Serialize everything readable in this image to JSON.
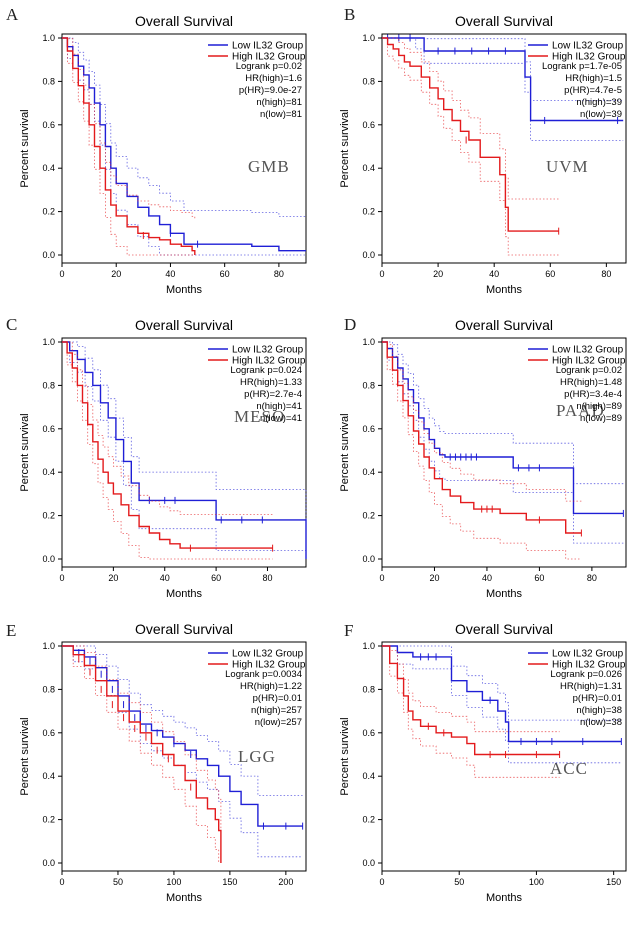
{
  "chart_data": [
    {
      "type": "line",
      "panel": "A",
      "title": "Overall Survival",
      "cancer": "GMB",
      "xlabel": "Months",
      "ylabel": "Percent survival",
      "xticks": [
        0,
        20,
        40,
        60,
        80
      ],
      "yticks": [
        "0.0",
        "0.2",
        "0.4",
        "0.6",
        "0.8",
        "1.0"
      ],
      "xlim": [
        0,
        90
      ],
      "ylim": [
        0,
        1
      ],
      "legend": [
        "Low IL32 Group",
        "High IL32 Group"
      ],
      "stats": [
        "Logrank p=0.02",
        "HR(high)=1.6",
        "p(HR)=9.0e-27",
        "n(high)=81",
        "n(low)=81"
      ],
      "series": [
        {
          "name": "Low IL32 Group",
          "color": "#1f1fd6",
          "x": [
            0,
            2,
            4,
            6,
            8,
            10,
            12,
            14,
            16,
            18,
            20,
            24,
            28,
            32,
            36,
            40,
            45,
            55,
            70,
            80,
            90
          ],
          "y": [
            1.0,
            0.96,
            0.92,
            0.87,
            0.83,
            0.77,
            0.7,
            0.6,
            0.5,
            0.4,
            0.33,
            0.27,
            0.22,
            0.18,
            0.14,
            0.1,
            0.05,
            0.05,
            0.04,
            0.02,
            0.02
          ],
          "censored": [
            [
              40,
              0.1
            ],
            [
              50,
              0.05
            ]
          ]
        },
        {
          "name": "High IL32 Group",
          "color": "#e31a1c",
          "x": [
            0,
            2,
            4,
            6,
            8,
            10,
            12,
            14,
            16,
            18,
            20,
            24,
            28,
            32,
            36,
            40,
            44,
            48,
            49
          ],
          "y": [
            1.0,
            0.94,
            0.86,
            0.78,
            0.7,
            0.6,
            0.5,
            0.4,
            0.3,
            0.23,
            0.18,
            0.13,
            0.1,
            0.08,
            0.07,
            0.05,
            0.04,
            0.02,
            0.0
          ],
          "censored": [
            [
              30,
              0.09
            ]
          ]
        }
      ]
    },
    {
      "type": "line",
      "panel": "B",
      "title": "Overall Survival",
      "cancer": "UVM",
      "xlabel": "Months",
      "ylabel": "Percent survival",
      "xticks": [
        0,
        20,
        40,
        60,
        80
      ],
      "yticks": [
        "0.0",
        "0.2",
        "0.4",
        "0.6",
        "0.8",
        "1.0"
      ],
      "xlim": [
        0,
        87
      ],
      "ylim": [
        0,
        1
      ],
      "legend": [
        "Low IL32 Group",
        "High IL32 Group"
      ],
      "stats": [
        "Logrank p=1.7e-05",
        "HR(high)=1.5",
        "p(HR)=4.7e-5",
        "n(high)=39",
        "n(low)=39"
      ],
      "series": [
        {
          "name": "Low IL32 Group",
          "color": "#1f1fd6",
          "x": [
            0,
            12,
            15,
            47,
            51,
            53,
            86
          ],
          "y": [
            1.0,
            1.0,
            0.94,
            0.94,
            0.82,
            0.62,
            0.62
          ],
          "censored": [
            [
              2,
              1.0
            ],
            [
              6,
              1.0
            ],
            [
              10,
              1.0
            ],
            [
              20,
              0.94
            ],
            [
              26,
              0.94
            ],
            [
              32,
              0.94
            ],
            [
              38,
              0.94
            ],
            [
              44,
              0.94
            ],
            [
              58,
              0.62
            ],
            [
              84,
              0.62
            ]
          ]
        },
        {
          "name": "High IL32 Group",
          "color": "#e31a1c",
          "x": [
            0,
            2,
            4,
            6,
            8,
            10,
            14,
            17,
            20,
            22,
            25,
            28,
            31,
            35,
            38,
            42,
            44,
            45,
            63
          ],
          "y": [
            1.0,
            0.97,
            0.95,
            0.92,
            0.89,
            0.87,
            0.82,
            0.77,
            0.72,
            0.67,
            0.62,
            0.57,
            0.53,
            0.45,
            0.45,
            0.37,
            0.22,
            0.11,
            0.11
          ],
          "censored": [
            [
              30,
              0.53
            ],
            [
              63,
              0.11
            ]
          ]
        }
      ]
    },
    {
      "type": "line",
      "panel": "C",
      "title": "Overall Survival",
      "cancer": "MESO",
      "xlabel": "Months",
      "ylabel": "Percent survival",
      "xticks": [
        0,
        20,
        40,
        60,
        80
      ],
      "yticks": [
        "0.0",
        "0.2",
        "0.4",
        "0.6",
        "0.8",
        "1.0"
      ],
      "xlim": [
        0,
        95
      ],
      "ylim": [
        0,
        1
      ],
      "legend": [
        "Low IL32 Group",
        "High IL32 Group"
      ],
      "stats": [
        "Logrank p=0.024",
        "HR(high)=1.33",
        "p(HR)=2.7e-4",
        "n(high)=41",
        "n(low)=41"
      ],
      "series": [
        {
          "name": "Low IL32 Group",
          "color": "#1f1fd6",
          "x": [
            0,
            3,
            6,
            9,
            12,
            15,
            18,
            21,
            24,
            27,
            30,
            57,
            60,
            94,
            95
          ],
          "y": [
            1.0,
            0.96,
            0.92,
            0.86,
            0.8,
            0.72,
            0.65,
            0.55,
            0.45,
            0.35,
            0.27,
            0.27,
            0.18,
            0.18,
            0.0
          ],
          "censored": [
            [
              34,
              0.27
            ],
            [
              40,
              0.27
            ],
            [
              44,
              0.27
            ],
            [
              62,
              0.18
            ],
            [
              70,
              0.18
            ],
            [
              78,
              0.18
            ]
          ]
        },
        {
          "name": "High IL32 Group",
          "color": "#e31a1c",
          "x": [
            0,
            2,
            4,
            6,
            8,
            10,
            12,
            14,
            16,
            18,
            20,
            23,
            26,
            30,
            34,
            38,
            42,
            46,
            82
          ],
          "y": [
            1.0,
            0.95,
            0.88,
            0.8,
            0.72,
            0.62,
            0.54,
            0.46,
            0.4,
            0.35,
            0.3,
            0.25,
            0.2,
            0.15,
            0.12,
            0.09,
            0.07,
            0.05,
            0.05
          ],
          "censored": [
            [
              50,
              0.05
            ],
            [
              82,
              0.05
            ]
          ]
        }
      ]
    },
    {
      "type": "line",
      "panel": "D",
      "title": "Overall Survival",
      "cancer": "PAAD",
      "xlabel": "Months",
      "ylabel": "Percent survival",
      "xticks": [
        0,
        20,
        40,
        60,
        80
      ],
      "yticks": [
        "0.0",
        "0.2",
        "0.4",
        "0.6",
        "0.8",
        "1.0"
      ],
      "xlim": [
        0,
        93
      ],
      "ylim": [
        0,
        1
      ],
      "legend": [
        "Low IL32 Group",
        "High IL32 Group"
      ],
      "stats": [
        "Logrank p=0.02",
        "HR(high)=1.48",
        "p(HR)=3.4e-4",
        "n(high)=89",
        "n(low)=89"
      ],
      "series": [
        {
          "name": "Low IL32 Group",
          "color": "#1f1fd6",
          "x": [
            0,
            2,
            4,
            6,
            8,
            10,
            12,
            14,
            16,
            18,
            20,
            22,
            24,
            37,
            50,
            72,
            73,
            92
          ],
          "y": [
            1.0,
            0.97,
            0.93,
            0.88,
            0.83,
            0.78,
            0.72,
            0.65,
            0.6,
            0.55,
            0.51,
            0.48,
            0.47,
            0.47,
            0.42,
            0.42,
            0.21,
            0.21
          ],
          "censored": [
            [
              26,
              0.47
            ],
            [
              28,
              0.47
            ],
            [
              30,
              0.47
            ],
            [
              32,
              0.47
            ],
            [
              34,
              0.47
            ],
            [
              36,
              0.47
            ],
            [
              52,
              0.42
            ],
            [
              56,
              0.42
            ],
            [
              60,
              0.42
            ],
            [
              92,
              0.21
            ]
          ]
        },
        {
          "name": "High IL32 Group",
          "color": "#e31a1c",
          "x": [
            0,
            2,
            4,
            6,
            8,
            10,
            12,
            14,
            16,
            18,
            20,
            23,
            26,
            30,
            35,
            45,
            55,
            70,
            76
          ],
          "y": [
            1.0,
            0.93,
            0.87,
            0.8,
            0.73,
            0.66,
            0.59,
            0.53,
            0.47,
            0.42,
            0.37,
            0.32,
            0.29,
            0.26,
            0.23,
            0.21,
            0.18,
            0.12,
            0.12
          ],
          "censored": [
            [
              38,
              0.23
            ],
            [
              40,
              0.23
            ],
            [
              42,
              0.23
            ],
            [
              60,
              0.18
            ],
            [
              76,
              0.12
            ]
          ]
        }
      ]
    },
    {
      "type": "line",
      "panel": "E",
      "title": "Overall Survival",
      "cancer": "LGG",
      "xlabel": "Months",
      "ylabel": "Percent survival",
      "xticks": [
        0,
        50,
        100,
        150,
        200
      ],
      "yticks": [
        "0.0",
        "0.2",
        "0.4",
        "0.6",
        "0.8",
        "1.0"
      ],
      "xlim": [
        0,
        218
      ],
      "ylim": [
        0,
        1
      ],
      "legend": [
        "Low IL32 Group",
        "High IL32 Group"
      ],
      "stats": [
        "Logrank p=0.0034",
        "HR(high)=1.22",
        "p(HR)=0.01",
        "n(high)=257",
        "n(low)=257"
      ],
      "series": [
        {
          "name": "Low IL32 Group",
          "color": "#1f1fd6",
          "x": [
            0,
            10,
            20,
            30,
            40,
            50,
            60,
            70,
            80,
            90,
            100,
            110,
            120,
            130,
            140,
            150,
            160,
            175,
            215
          ],
          "y": [
            1.0,
            0.98,
            0.95,
            0.9,
            0.84,
            0.77,
            0.7,
            0.64,
            0.61,
            0.58,
            0.55,
            0.52,
            0.48,
            0.45,
            0.4,
            0.33,
            0.27,
            0.17,
            0.17
          ],
          "censored": [
            [
              15,
              0.97
            ],
            [
              25,
              0.93
            ],
            [
              35,
              0.87
            ],
            [
              45,
              0.8
            ],
            [
              55,
              0.73
            ],
            [
              65,
              0.67
            ],
            [
              75,
              0.62
            ],
            [
              85,
              0.6
            ],
            [
              100,
              0.55
            ],
            [
              115,
              0.5
            ],
            [
              180,
              0.17
            ],
            [
              200,
              0.17
            ],
            [
              215,
              0.17
            ]
          ]
        },
        {
          "name": "High IL32 Group",
          "color": "#e31a1c",
          "x": [
            0,
            10,
            20,
            30,
            40,
            50,
            60,
            70,
            80,
            90,
            100,
            110,
            120,
            130,
            137,
            140,
            142
          ],
          "y": [
            1.0,
            0.96,
            0.91,
            0.84,
            0.77,
            0.7,
            0.65,
            0.6,
            0.55,
            0.5,
            0.45,
            0.38,
            0.3,
            0.25,
            0.2,
            0.15,
            0.0
          ],
          "censored": [
            [
              15,
              0.94
            ],
            [
              25,
              0.88
            ],
            [
              35,
              0.8
            ],
            [
              45,
              0.73
            ],
            [
              55,
              0.67
            ],
            [
              65,
              0.62
            ],
            [
              75,
              0.58
            ],
            [
              85,
              0.52
            ],
            [
              95,
              0.48
            ],
            [
              115,
              0.35
            ]
          ]
        }
      ]
    },
    {
      "type": "line",
      "panel": "F",
      "title": "Overall Survival",
      "cancer": "ACC",
      "xlabel": "Months",
      "ylabel": "Percent survival",
      "xticks": [
        0,
        50,
        100,
        150
      ],
      "yticks": [
        "0.0",
        "0.2",
        "0.4",
        "0.6",
        "0.8",
        "1.0"
      ],
      "xlim": [
        0,
        158
      ],
      "ylim": [
        0,
        1
      ],
      "legend": [
        "Low IL32 Group",
        "High IL32 Group"
      ],
      "stats": [
        "Logrank p=0.026",
        "HR(high)=1.31",
        "p(HR)=0.01",
        "n(high)=38",
        "n(low)=38"
      ],
      "series": [
        {
          "name": "Low IL32 Group",
          "color": "#1f1fd6",
          "x": [
            0,
            10,
            20,
            40,
            45,
            55,
            65,
            75,
            80,
            82,
            155
          ],
          "y": [
            1.0,
            0.97,
            0.95,
            0.95,
            0.84,
            0.79,
            0.75,
            0.7,
            0.65,
            0.56,
            0.56
          ],
          "censored": [
            [
              25,
              0.95
            ],
            [
              30,
              0.95
            ],
            [
              35,
              0.95
            ],
            [
              70,
              0.75
            ],
            [
              90,
              0.56
            ],
            [
              100,
              0.56
            ],
            [
              110,
              0.56
            ],
            [
              130,
              0.56
            ],
            [
              155,
              0.56
            ]
          ]
        },
        {
          "name": "High IL32 Group",
          "color": "#e31a1c",
          "x": [
            0,
            5,
            10,
            14,
            17,
            20,
            25,
            35,
            45,
            55,
            60,
            115
          ],
          "y": [
            1.0,
            0.92,
            0.85,
            0.77,
            0.7,
            0.66,
            0.63,
            0.6,
            0.58,
            0.55,
            0.5,
            0.5
          ],
          "censored": [
            [
              30,
              0.63
            ],
            [
              40,
              0.6
            ],
            [
              70,
              0.5
            ],
            [
              80,
              0.5
            ],
            [
              100,
              0.5
            ],
            [
              115,
              0.5
            ]
          ]
        }
      ]
    }
  ]
}
